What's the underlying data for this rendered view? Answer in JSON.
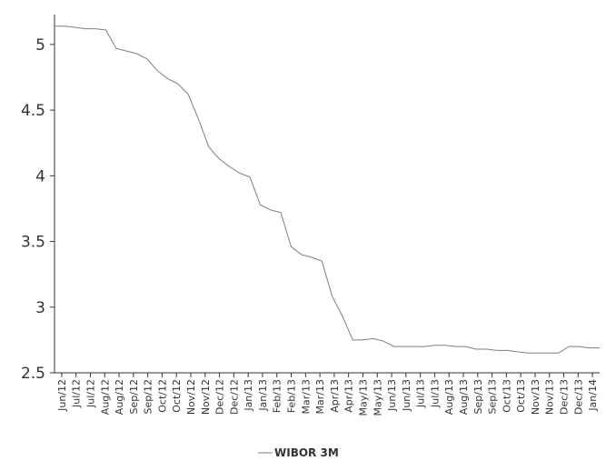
{
  "chart_data": {
    "type": "line",
    "title": "",
    "xlabel": "",
    "ylabel": "",
    "ylim": [
      2.5,
      5.2
    ],
    "yticks": [
      2.5,
      3,
      3.5,
      4,
      4.5,
      5
    ],
    "grid": false,
    "legend_position": "bottom",
    "xticks": [
      "Jun/12",
      "Jul/12",
      "Jul/12",
      "Aug/12",
      "Aug/12",
      "Sep/12",
      "Sep/12",
      "Oct/12",
      "Oct/12",
      "Nov/12",
      "Nov/12",
      "Dec/12",
      "Dec/12",
      "Jan/13",
      "Jan/13",
      "Feb/13",
      "Feb/13",
      "Mar/13",
      "Mar/13",
      "Apr/13",
      "Apr/13",
      "May/13",
      "May/13",
      "Jun/13",
      "Jun/13",
      "Jul/13",
      "Jul/13",
      "Aug/13",
      "Aug/13",
      "Sep/13",
      "Sep/13",
      "Oct/13",
      "Oct/13",
      "Nov/13",
      "Nov/13",
      "Dec/13",
      "Dec/13",
      "Jan/14"
    ],
    "series": [
      {
        "name": "WIBOR 3M",
        "color": "#7f7f7f",
        "values": [
          5.14,
          5.14,
          5.13,
          5.12,
          5.12,
          5.11,
          4.97,
          4.95,
          4.93,
          4.89,
          4.8,
          4.74,
          4.7,
          4.62,
          4.43,
          4.22,
          4.13,
          4.07,
          4.02,
          3.99,
          3.78,
          3.74,
          3.72,
          3.46,
          3.4,
          3.38,
          3.35,
          3.08,
          2.93,
          2.75,
          2.75,
          2.76,
          2.74,
          2.7,
          2.7,
          2.7,
          2.7,
          2.71,
          2.71,
          2.7,
          2.7,
          2.68,
          2.68,
          2.67,
          2.67,
          2.66,
          2.65,
          2.65,
          2.65,
          2.65,
          2.7,
          2.7,
          2.69,
          2.69
        ]
      }
    ]
  }
}
